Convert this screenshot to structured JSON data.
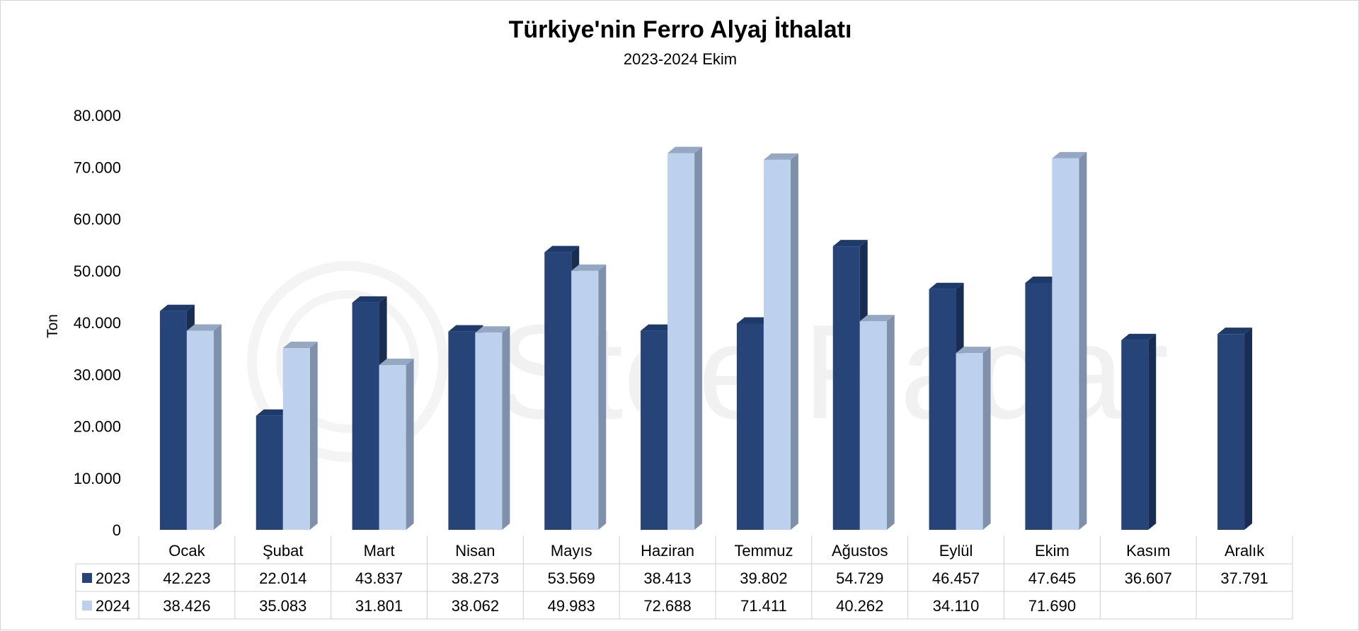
{
  "chart_data": {
    "type": "bar",
    "title": "Türkiye'nin Ferro Alyaj İthalatı",
    "subtitle": "2023-2024 Ekim",
    "ylabel": "Ton",
    "ylim": [
      0,
      80000
    ],
    "yticks": [
      0,
      10000,
      20000,
      30000,
      40000,
      50000,
      60000,
      70000,
      80000
    ],
    "ytick_labels": [
      "0",
      "10.000",
      "20.000",
      "30.000",
      "40.000",
      "50.000",
      "60.000",
      "70.000",
      "80.000"
    ],
    "categories": [
      "Ocak",
      "Şubat",
      "Mart",
      "Nisan",
      "Mayıs",
      "Haziran",
      "Temmuz",
      "Ağustos",
      "Eylül",
      "Ekim",
      "Kasım",
      "Aralık"
    ],
    "series": [
      {
        "name": "2023",
        "color": "#264478",
        "values": [
          42223,
          22014,
          43837,
          38273,
          53569,
          38413,
          39802,
          54729,
          46457,
          47645,
          36607,
          37791
        ],
        "labels": [
          "42.223",
          "22.014",
          "43.837",
          "38.273",
          "53.569",
          "38.413",
          "39.802",
          "54.729",
          "46.457",
          "47.645",
          "36.607",
          "37.791"
        ]
      },
      {
        "name": "2024",
        "color": "#bdd1ee",
        "values": [
          38426,
          35083,
          31801,
          38062,
          49983,
          72688,
          71411,
          40262,
          34110,
          71690,
          null,
          null
        ],
        "labels": [
          "38.426",
          "35.083",
          "31.801",
          "38.062",
          "49.983",
          "72.688",
          "71.411",
          "40.262",
          "34.110",
          "71.690",
          "",
          ""
        ]
      }
    ],
    "grid": false,
    "legend": "data-table",
    "data_table": true,
    "style": "3d-column"
  },
  "watermark": {
    "text": "SteelRadar"
  }
}
